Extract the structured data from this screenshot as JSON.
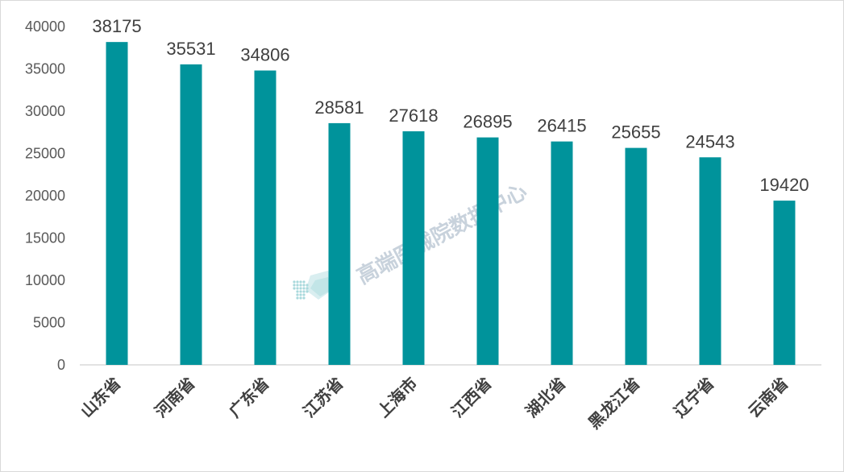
{
  "chart_data": {
    "type": "bar",
    "categories": [
      "山东省",
      "河南省",
      "广东省",
      "江苏省",
      "上海市",
      "江西省",
      "湖北省",
      "黑龙江省",
      "辽宁省",
      "云南省"
    ],
    "values": [
      38175,
      35531,
      34806,
      28581,
      27618,
      26895,
      26415,
      25655,
      24543,
      19420
    ],
    "yticks": [
      0,
      5000,
      10000,
      15000,
      20000,
      25000,
      30000,
      35000,
      40000
    ],
    "ylim": [
      0,
      40000
    ],
    "title": "",
    "xlabel": "",
    "ylabel": "",
    "grid": false,
    "legend": "none",
    "bar_color": "#00939b",
    "axis_color": "#d9d9d9"
  },
  "watermark": {
    "text": "高端医械院数据中心"
  }
}
